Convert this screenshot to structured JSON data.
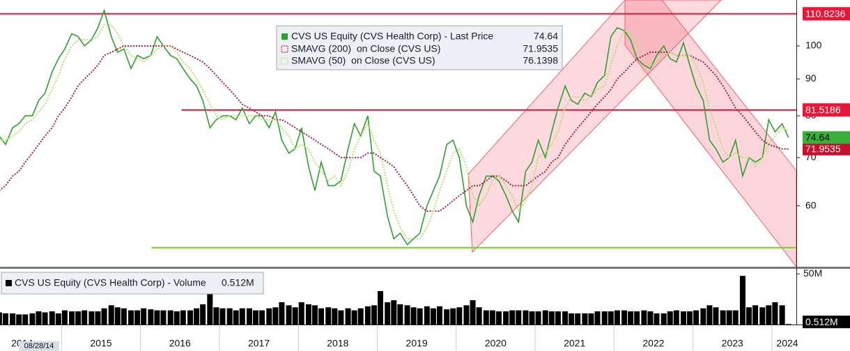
{
  "chart_data": [
    {
      "type": "line",
      "log_y": true,
      "x": [
        2014.21,
        2014.29,
        2014.38,
        2014.46,
        2014.54,
        2014.63,
        2014.71,
        2014.79,
        2014.88,
        2014.96,
        2015.04,
        2015.13,
        2015.21,
        2015.29,
        2015.38,
        2015.46,
        2015.54,
        2015.63,
        2015.71,
        2015.79,
        2015.88,
        2015.96,
        2016.04,
        2016.13,
        2016.21,
        2016.29,
        2016.38,
        2016.46,
        2016.54,
        2016.63,
        2016.71,
        2016.79,
        2016.88,
        2016.96,
        2017.04,
        2017.13,
        2017.21,
        2017.29,
        2017.38,
        2017.46,
        2017.54,
        2017.63,
        2017.71,
        2017.79,
        2017.88,
        2017.96,
        2018.04,
        2018.13,
        2018.21,
        2018.29,
        2018.38,
        2018.46,
        2018.54,
        2018.63,
        2018.71,
        2018.79,
        2018.88,
        2018.96,
        2019.04,
        2019.13,
        2019.21,
        2019.29,
        2019.38,
        2019.46,
        2019.54,
        2019.63,
        2019.71,
        2019.79,
        2019.88,
        2019.96,
        2020.04,
        2020.13,
        2020.21,
        2020.29,
        2020.38,
        2020.46,
        2020.54,
        2020.63,
        2020.71,
        2020.79,
        2020.88,
        2020.96,
        2021.04,
        2021.13,
        2021.21,
        2021.29,
        2021.38,
        2021.46,
        2021.54,
        2021.63,
        2021.71,
        2021.79,
        2021.88,
        2021.96,
        2022.04,
        2022.13,
        2022.21,
        2022.29,
        2022.38,
        2022.46,
        2022.54,
        2022.63,
        2022.71,
        2022.79,
        2022.88,
        2022.96,
        2023.04,
        2023.13,
        2023.21,
        2023.29,
        2023.38,
        2023.46,
        2023.54,
        2023.63,
        2023.71,
        2023.79,
        2023.88,
        2023.96,
        2024.04,
        2024.13,
        2024.21
      ],
      "series": [
        {
          "name": "CVS US Equity (CVS Health Corp) - Last Price",
          "color": "#2f9e2f",
          "style": "solid",
          "values": [
            75,
            73,
            77,
            78,
            80,
            80,
            84,
            86,
            92,
            96,
            99,
            104,
            103,
            100,
            102,
            106,
            112,
            103,
            98,
            99,
            93,
            97,
            96,
            97,
            103,
            100,
            97,
            96,
            93,
            90,
            88,
            84,
            77,
            79,
            80,
            80,
            79,
            82,
            78,
            80,
            80,
            77,
            81,
            74,
            71,
            72,
            77,
            68,
            63,
            69,
            64,
            64,
            65,
            72,
            78,
            75,
            80,
            67,
            66,
            58,
            54,
            55,
            53,
            54,
            55,
            60,
            63,
            66,
            73,
            74,
            70,
            60,
            57,
            62,
            66,
            66,
            65,
            62,
            59,
            57,
            67,
            69,
            74,
            70,
            76,
            82,
            88,
            84,
            83,
            86,
            85,
            89,
            91,
            103,
            106,
            105,
            102,
            96,
            94,
            93,
            97,
            100,
            96,
            95,
            101,
            94,
            88,
            84,
            74,
            72,
            69,
            70,
            74,
            66,
            70,
            69,
            70,
            79,
            76,
            78,
            74.64
          ]
        },
        {
          "name": "SMAVG (200)  on Close (CVS US)",
          "color": "#a51d3c",
          "style": "dotted",
          "values": [
            63,
            64,
            66,
            67,
            69,
            71,
            73,
            75,
            77,
            80,
            82,
            85,
            88,
            90,
            92,
            94,
            97,
            98,
            99,
            100,
            100,
            100,
            100,
            100,
            100,
            100,
            100,
            99,
            98,
            97,
            96,
            95,
            93,
            91,
            89,
            87,
            85,
            83,
            82,
            81,
            80,
            80,
            79,
            79,
            78,
            77,
            76,
            75,
            74,
            73,
            72,
            71,
            70,
            70,
            70,
            70,
            71,
            71,
            70,
            69,
            68,
            66,
            64,
            62,
            60,
            59,
            59,
            59,
            60,
            61,
            62,
            63,
            64,
            64,
            65,
            66,
            66,
            65,
            64,
            64,
            64,
            65,
            66,
            67,
            69,
            70,
            73,
            75,
            77,
            79,
            81,
            83,
            85,
            87,
            90,
            92,
            94,
            96,
            97,
            98,
            98,
            98,
            98,
            97,
            97,
            97,
            96,
            95,
            93,
            91,
            88,
            85,
            82,
            80,
            78,
            76,
            74,
            73,
            72.5,
            72,
            71.9535
          ]
        },
        {
          "name": "SMAVG (50)  on Close (CVS US)",
          "color": "#b9dc6e",
          "style": "dotted",
          "values": [
            74,
            74,
            75,
            76,
            78,
            79,
            81,
            83,
            87,
            91,
            96,
            100,
            102,
            102,
            102,
            103,
            107,
            107,
            104,
            100,
            97,
            96,
            95,
            97,
            99,
            100,
            100,
            98,
            95,
            93,
            90,
            87,
            83,
            80,
            79,
            80,
            80,
            80,
            80,
            80,
            79,
            79,
            79,
            77,
            75,
            72,
            73,
            72,
            69,
            67,
            65,
            66,
            64,
            67,
            72,
            75,
            78,
            74,
            71,
            64,
            59,
            56,
            54,
            54,
            54,
            56,
            59,
            63,
            67,
            71,
            72,
            68,
            62,
            60,
            62,
            65,
            66,
            64,
            62,
            59,
            61,
            64,
            70,
            71,
            73,
            76,
            82,
            85,
            85,
            84,
            85,
            87,
            88,
            94,
            100,
            105,
            104,
            101,
            97,
            94,
            95,
            97,
            98,
            97,
            97,
            97,
            94,
            89,
            82,
            77,
            72,
            70,
            71,
            70,
            70,
            68,
            70,
            73,
            75,
            77,
            76.1398
          ]
        }
      ],
      "xlim": [
        2014.22,
        2024.31
      ],
      "xticks": [
        2014,
        2015,
        2016,
        2017,
        2018,
        2019,
        2020,
        2021,
        2022,
        2023,
        2024
      ],
      "ylim": [
        49.4,
        115.8
      ],
      "yticks": [
        60,
        70,
        80,
        90,
        100
      ],
      "hlines": [
        {
          "value": 110.8236,
          "color": "#e8173a",
          "tag": true
        },
        {
          "value": 81.5186,
          "color": "#e8173a",
          "start": 2016.52,
          "tag": true
        },
        {
          "value": 52.5,
          "color": "#77cc22",
          "start": 2016.14
        }
      ],
      "cursor_date": "08/28/14"
    },
    {
      "type": "bar",
      "name": "CVS US Equity (CVS Health Corp) - Volume",
      "color": "#000000",
      "last_label": "0.512M",
      "x": [
        2014.21,
        2014.29,
        2014.38,
        2014.46,
        2014.54,
        2014.63,
        2014.71,
        2014.79,
        2014.88,
        2014.96,
        2015.04,
        2015.13,
        2015.21,
        2015.29,
        2015.38,
        2015.46,
        2015.54,
        2015.63,
        2015.71,
        2015.79,
        2015.88,
        2015.96,
        2016.04,
        2016.13,
        2016.21,
        2016.29,
        2016.38,
        2016.46,
        2016.54,
        2016.63,
        2016.71,
        2016.79,
        2016.88,
        2016.96,
        2017.04,
        2017.13,
        2017.21,
        2017.29,
        2017.38,
        2017.46,
        2017.54,
        2017.63,
        2017.71,
        2017.79,
        2017.88,
        2017.96,
        2018.04,
        2018.13,
        2018.21,
        2018.29,
        2018.38,
        2018.46,
        2018.54,
        2018.63,
        2018.71,
        2018.79,
        2018.88,
        2018.96,
        2019.04,
        2019.13,
        2019.21,
        2019.29,
        2019.38,
        2019.46,
        2019.54,
        2019.63,
        2019.71,
        2019.79,
        2019.88,
        2019.96,
        2020.04,
        2020.13,
        2020.21,
        2020.29,
        2020.38,
        2020.46,
        2020.54,
        2020.63,
        2020.71,
        2020.79,
        2020.88,
        2020.96,
        2021.04,
        2021.13,
        2021.21,
        2021.29,
        2021.38,
        2021.46,
        2021.54,
        2021.63,
        2021.71,
        2021.79,
        2021.88,
        2021.96,
        2022.04,
        2022.13,
        2022.21,
        2022.29,
        2022.38,
        2022.46,
        2022.54,
        2022.63,
        2022.71,
        2022.79,
        2022.88,
        2022.96,
        2023.04,
        2023.13,
        2023.21,
        2023.29,
        2023.38,
        2023.46,
        2023.54,
        2023.63,
        2023.71,
        2023.79,
        2023.88,
        2023.96,
        2024.04,
        2024.13,
        2024.21
      ],
      "values": [
        12,
        11,
        11,
        10,
        10,
        11,
        13,
        12,
        13,
        11,
        14,
        13,
        13,
        14,
        13,
        13,
        16,
        19,
        17,
        16,
        14,
        14,
        16,
        15,
        14,
        14,
        14,
        13,
        14,
        14,
        16,
        20,
        36,
        17,
        16,
        16,
        14,
        16,
        16,
        14,
        14,
        16,
        17,
        22,
        19,
        17,
        22,
        20,
        19,
        16,
        17,
        16,
        14,
        16,
        14,
        16,
        18,
        19,
        33,
        22,
        24,
        20,
        19,
        17,
        16,
        18,
        16,
        18,
        15,
        16,
        17,
        19,
        24,
        17,
        14,
        14,
        13,
        13,
        14,
        14,
        14,
        13,
        13,
        14,
        13,
        13,
        13,
        11,
        11,
        11,
        11,
        13,
        13,
        13,
        14,
        14,
        13,
        13,
        14,
        13,
        11,
        11,
        13,
        14,
        13,
        13,
        14,
        16,
        19,
        17,
        14,
        14,
        14,
        48,
        17,
        19,
        17,
        19,
        22,
        19,
        0.512
      ],
      "xlim": [
        2014.22,
        2024.31
      ],
      "ylim": [
        0,
        55
      ],
      "yticks": [
        {
          "value": 50,
          "label": "50M"
        }
      ]
    }
  ]
}
